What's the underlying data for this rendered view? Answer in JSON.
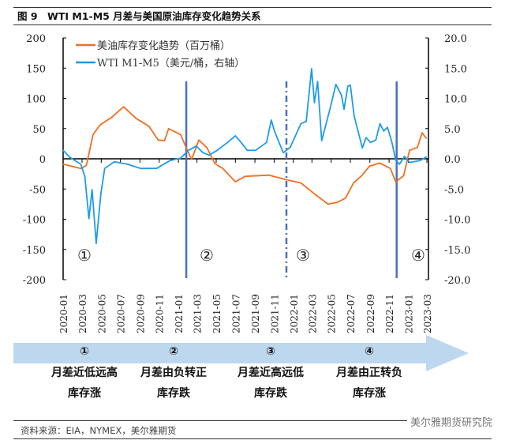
{
  "title": "图 9　WTI M1-M5 月差与美国原油库存变化趋势关系",
  "source": "资料来源：EIA，NYMEX，美尔雅期货",
  "watermark": "美尔雅期货研究院",
  "stages": [
    {
      "marker": "①",
      "line1": "月差近低远高",
      "line2": "库存涨"
    },
    {
      "marker": "②",
      "line1": "月差由负转正",
      "line2": "库存跌"
    },
    {
      "marker": "③",
      "line1": "月差近高远低",
      "line2": "库存跌"
    },
    {
      "marker": "④",
      "line1": "月差由正转负",
      "line2": "库存涨"
    }
  ],
  "colors": {
    "orange": "#f07020",
    "blue": "#1e9be8",
    "divider": "#4a6fc0",
    "band": "#bdd7ee"
  },
  "chart_data": {
    "type": "line",
    "title": "",
    "legend_position": "top-left",
    "grid": false,
    "left_axis": {
      "ylim": [
        -200,
        200
      ],
      "ticks": [
        "200",
        "150",
        "100",
        "50",
        "0",
        "-50",
        "-100",
        "-150",
        "-200"
      ]
    },
    "right_axis": {
      "ylim": [
        -20,
        20
      ],
      "ticks": [
        "20.0",
        "15.0",
        "10.0",
        "5.0",
        "0.0",
        "-5.0",
        "-10.0",
        "-15.0",
        "-20.0"
      ]
    },
    "x_ticks": [
      "2020-01",
      "2020-03",
      "2020-05",
      "2020-07",
      "2020-09",
      "2020-11",
      "2021-01",
      "2021-03",
      "2021-05",
      "2021-07",
      "2021-09",
      "2021-11",
      "2022-01",
      "2022-03",
      "2022-05",
      "2022-07",
      "2022-09",
      "2022-11",
      "2023-01",
      "2023-03"
    ],
    "region_markers": [
      "①",
      "②",
      "③",
      "④"
    ],
    "dividers": [
      {
        "date": "2021-01-26",
        "style": "solid"
      },
      {
        "date": "2021-12-10",
        "style": "dash-dot"
      },
      {
        "date": "2022-11-25",
        "style": "solid"
      }
    ],
    "series": [
      {
        "name": "美油库存变化趋势（百万桶）",
        "axis": "left",
        "color": "#f07020",
        "points": [
          [
            "2020-01-01",
            -9
          ],
          [
            "2020-02-26",
            -16
          ],
          [
            "2020-03-15",
            -11
          ],
          [
            "2020-04-05",
            40
          ],
          [
            "2020-04-27",
            56
          ],
          [
            "2020-06-04",
            69
          ],
          [
            "2020-07-11",
            86
          ],
          [
            "2020-08-19",
            67
          ],
          [
            "2020-09-29",
            54
          ],
          [
            "2020-10-29",
            31
          ],
          [
            "2020-11-18",
            30
          ],
          [
            "2020-12-01",
            50
          ],
          [
            "2021-01-08",
            40
          ],
          [
            "2021-01-26",
            18
          ],
          [
            "2021-02-12",
            -1
          ],
          [
            "2021-03-07",
            31
          ],
          [
            "2021-04-02",
            18
          ],
          [
            "2021-04-27",
            -8
          ],
          [
            "2021-05-22",
            -16
          ],
          [
            "2021-07-01",
            -38
          ],
          [
            "2021-08-01",
            -29
          ],
          [
            "2021-10-16",
            -27
          ],
          [
            "2021-12-05",
            -34
          ],
          [
            "2022-01-25",
            -40
          ],
          [
            "2022-03-14",
            -60
          ],
          [
            "2022-04-21",
            -75
          ],
          [
            "2022-05-21",
            -72
          ],
          [
            "2022-06-16",
            -65
          ],
          [
            "2022-07-11",
            -40
          ],
          [
            "2022-08-06",
            -28
          ],
          [
            "2022-08-31",
            -12
          ],
          [
            "2022-10-03",
            -7
          ],
          [
            "2022-11-05",
            -16
          ],
          [
            "2022-11-22",
            -38
          ],
          [
            "2022-12-17",
            -28
          ],
          [
            "2023-01-05",
            14
          ],
          [
            "2023-01-30",
            19
          ],
          [
            "2023-02-14",
            43
          ],
          [
            "2023-02-27",
            34
          ]
        ]
      },
      {
        "name": "WTI M1-M5（美元/桶，右轴）",
        "axis": "right",
        "color": "#1e9be8",
        "points": [
          [
            "2020-01-01",
            1.4
          ],
          [
            "2020-01-21",
            0.3
          ],
          [
            "2020-02-26",
            -0.9
          ],
          [
            "2020-03-10",
            -2.9
          ],
          [
            "2020-03-23",
            -9.9
          ],
          [
            "2020-04-02",
            -5.1
          ],
          [
            "2020-04-15",
            -14.0
          ],
          [
            "2020-04-30",
            -5.7
          ],
          [
            "2020-05-12",
            -1.6
          ],
          [
            "2020-06-11",
            -0.5
          ],
          [
            "2020-07-24",
            -0.9
          ],
          [
            "2020-09-03",
            -1.6
          ],
          [
            "2020-10-24",
            -1.6
          ],
          [
            "2020-12-05",
            -0.3
          ],
          [
            "2021-01-08",
            0.1
          ],
          [
            "2021-02-02",
            1.4
          ],
          [
            "2021-02-27",
            2.1
          ],
          [
            "2021-03-20",
            1.0
          ],
          [
            "2021-04-09",
            0.6
          ],
          [
            "2021-05-04",
            1.4
          ],
          [
            "2021-06-06",
            2.7
          ],
          [
            "2021-07-01",
            3.8
          ],
          [
            "2021-07-19",
            2.7
          ],
          [
            "2021-08-08",
            1.4
          ],
          [
            "2021-09-03",
            1.4
          ],
          [
            "2021-10-08",
            2.7
          ],
          [
            "2021-10-23",
            6.4
          ],
          [
            "2021-11-02",
            4.6
          ],
          [
            "2021-11-30",
            1.0
          ],
          [
            "2021-12-22",
            1.9
          ],
          [
            "2022-01-25",
            5.8
          ],
          [
            "2022-02-11",
            6.2
          ],
          [
            "2022-02-28",
            14.9
          ],
          [
            "2022-03-09",
            9.3
          ],
          [
            "2022-03-19",
            12.8
          ],
          [
            "2022-04-01",
            3.0
          ],
          [
            "2022-04-26",
            8.0
          ],
          [
            "2022-05-16",
            12.3
          ],
          [
            "2022-06-03",
            10.5
          ],
          [
            "2022-06-11",
            8.2
          ],
          [
            "2022-06-23",
            12.0
          ],
          [
            "2022-07-01",
            12.2
          ],
          [
            "2022-07-13",
            7.1
          ],
          [
            "2022-08-08",
            1.8
          ],
          [
            "2022-08-20",
            3.5
          ],
          [
            "2022-09-03",
            2.7
          ],
          [
            "2022-09-20",
            3.1
          ],
          [
            "2022-10-03",
            5.8
          ],
          [
            "2022-10-15",
            4.6
          ],
          [
            "2022-10-27",
            5.2
          ],
          [
            "2022-11-10",
            2.7
          ],
          [
            "2022-11-22",
            -0.2
          ],
          [
            "2022-12-04",
            -0.9
          ],
          [
            "2022-12-20",
            0.4
          ],
          [
            "2023-01-05",
            -0.6
          ],
          [
            "2023-02-07",
            -0.3
          ],
          [
            "2023-02-27",
            0.3
          ]
        ]
      }
    ]
  }
}
